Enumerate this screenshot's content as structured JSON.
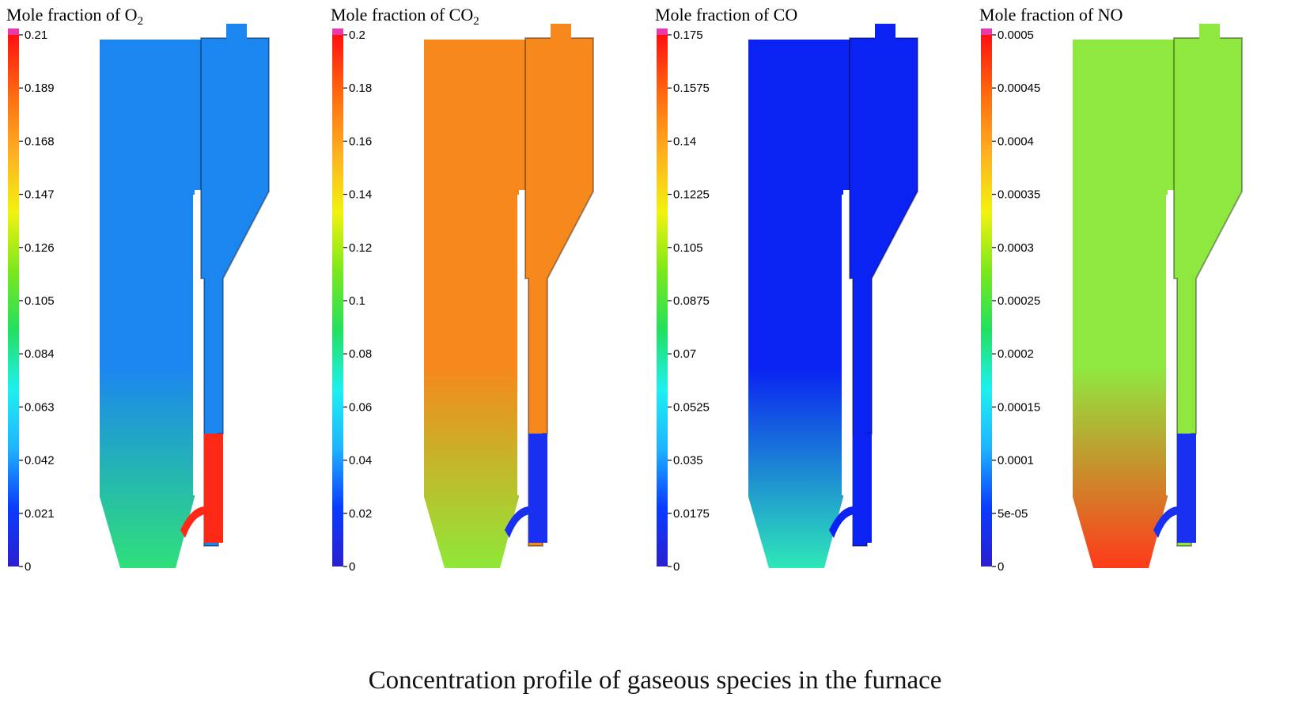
{
  "figure": {
    "caption": "Concentration profile of gaseous species in the furnace",
    "colormap": [
      "#2b1fcf",
      "#0a3cff",
      "#1fb4ff",
      "#1ef0f0",
      "#22e060",
      "#7be81c",
      "#f2f20f",
      "#ffb020",
      "#ff6a10",
      "#ff1010"
    ],
    "cap_color": "#e83aa8",
    "panels": [
      {
        "id": "o2",
        "title_text": "Mole fraction of O",
        "title_sub": "2",
        "ticks": [
          "0.21",
          "0.189",
          "0.168",
          "0.147",
          "0.126",
          "0.105",
          "0.084",
          "0.063",
          "0.042",
          "0.021",
          "0"
        ],
        "dominant_color": "#1c86f0",
        "bottom_accent": "#2ee07a",
        "pipe_color": "#ff2a16"
      },
      {
        "id": "co2",
        "title_text": "Mole fraction of CO",
        "title_sub": "2",
        "ticks": [
          "0.2",
          "0.18",
          "0.16",
          "0.14",
          "0.12",
          "0.1",
          "0.08",
          "0.06",
          "0.04",
          "0.02",
          "0"
        ],
        "dominant_color": "#f6881c",
        "bottom_accent": "#8fe838",
        "pipe_color": "#1a30f0"
      },
      {
        "id": "co",
        "title_text": "Mole fraction of CO",
        "title_sub": "",
        "ticks": [
          "0.175",
          "0.1575",
          "0.14",
          "0.1225",
          "0.105",
          "0.0875",
          "0.07",
          "0.0525",
          "0.035",
          "0.0175",
          "0"
        ],
        "dominant_color": "#0a22f2",
        "bottom_accent": "#2fe8b8",
        "pipe_color": "#0a22f2"
      },
      {
        "id": "no",
        "title_text": "Mole fraction of NO",
        "title_sub": "",
        "ticks": [
          "0.0005",
          "0.00045",
          "0.0004",
          "0.00035",
          "0.0003",
          "0.00025",
          "0.0002",
          "0.00015",
          "0.0001",
          "5e-05",
          "0"
        ],
        "dominant_color": "#8fe840",
        "bottom_accent": "#ff3a1a",
        "pipe_color": "#1a30f0"
      }
    ]
  }
}
